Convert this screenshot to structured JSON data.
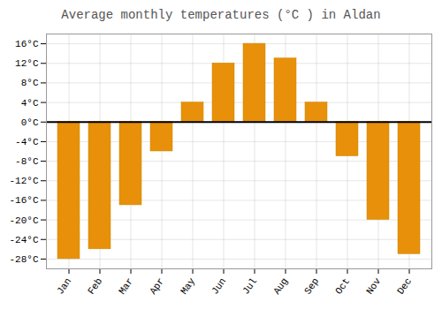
{
  "chart_data": {
    "type": "bar",
    "title": "Average monthly temperatures (°C ) in Aldan",
    "categories": [
      "Jan",
      "Feb",
      "Mar",
      "Apr",
      "May",
      "Jun",
      "Jul",
      "Aug",
      "Sep",
      "Oct",
      "Nov",
      "Dec"
    ],
    "values": [
      -28,
      -26,
      -17,
      -6,
      4,
      12,
      16,
      13,
      4,
      -7,
      -20,
      -27
    ],
    "color": "#E8900A",
    "ylim": [
      -30,
      18
    ],
    "yticks": [
      {
        "value": -28,
        "label": "-28°C"
      },
      {
        "value": -24,
        "label": "-24°C"
      },
      {
        "value": -20,
        "label": "-20°C"
      },
      {
        "value": -16,
        "label": "-16°C"
      },
      {
        "value": -12,
        "label": "-12°C"
      },
      {
        "value": -8,
        "label": "-8°C"
      },
      {
        "value": -4,
        "label": "-4°C"
      },
      {
        "value": 0,
        "label": "0°C"
      },
      {
        "value": 4,
        "label": "4°C"
      },
      {
        "value": 8,
        "label": "8°C"
      },
      {
        "value": 12,
        "label": "12°C"
      },
      {
        "value": 16,
        "label": "16°C"
      }
    ],
    "grid": true
  }
}
